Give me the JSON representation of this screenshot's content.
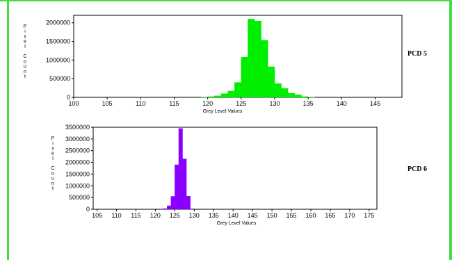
{
  "colors": {
    "frame": "#44dd44",
    "hist1": "#00ee00",
    "hist2": "#8800ff"
  },
  "chart_data": [
    {
      "type": "bar",
      "panel_label": "PCD 5",
      "xlabel": "Grey Level Values",
      "ylabel": "Pixel Count",
      "xlim": [
        100,
        149
      ],
      "ylim": [
        0,
        2200000
      ],
      "xticks": [
        100,
        105,
        110,
        115,
        120,
        125,
        130,
        135,
        140,
        145
      ],
      "yticks": [
        0,
        500000,
        1000000,
        1500000,
        2000000
      ],
      "grid": false,
      "bin_width": 1,
      "bins": [
        119,
        120,
        121,
        122,
        123,
        124,
        125,
        126,
        127,
        128,
        129,
        130,
        131,
        132,
        133,
        134,
        135
      ],
      "values": [
        5000,
        20000,
        40000,
        100000,
        170000,
        400000,
        1080000,
        2100000,
        2050000,
        1530000,
        820000,
        370000,
        240000,
        110000,
        70000,
        20000,
        5000
      ]
    },
    {
      "type": "bar",
      "panel_label": "PCD 6",
      "xlabel": "Grey Level Values",
      "ylabel": "Pixel Count",
      "xlim": [
        104,
        177
      ],
      "ylim": [
        0,
        3500000
      ],
      "xticks": [
        105,
        110,
        115,
        120,
        125,
        130,
        135,
        140,
        145,
        150,
        155,
        160,
        165,
        170,
        175
      ],
      "yticks": [
        0,
        500000,
        1000000,
        1500000,
        2000000,
        2500000,
        3000000,
        3500000
      ],
      "grid": false,
      "bin_width": 1,
      "bins": [
        122,
        123,
        124,
        125,
        126,
        127,
        128,
        129
      ],
      "values": [
        30000,
        150000,
        550000,
        1900000,
        3450000,
        2150000,
        560000,
        20000
      ]
    }
  ]
}
